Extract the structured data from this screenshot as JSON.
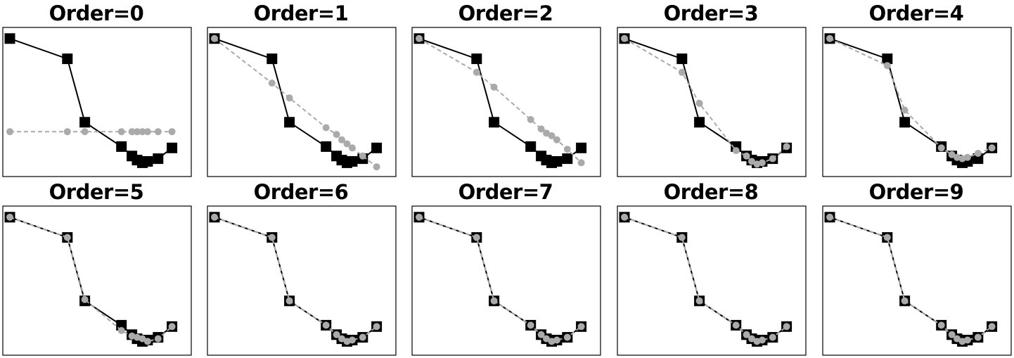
{
  "chart_data": {
    "type": "line",
    "layout": "2x5 grid of polynomial fits",
    "grid": false,
    "axes_ticks": "none",
    "xlim": [
      0,
      1
    ],
    "ylim": [
      0,
      1
    ],
    "x": [
      0.0,
      0.33,
      0.43,
      0.64,
      0.7,
      0.73,
      0.76,
      0.79,
      0.85,
      0.93
    ],
    "data_series": {
      "name": "",
      "style": "black squares, solid black line",
      "y": [
        0.97,
        0.82,
        0.35,
        0.17,
        0.1,
        0.07,
        0.05,
        0.06,
        0.08,
        0.16
      ]
    },
    "panels": [
      {
        "title": "Order=0",
        "fit": [
          0.28,
          0.28,
          0.28,
          0.28,
          0.28,
          0.28,
          0.28,
          0.28,
          0.28,
          0.28
        ]
      },
      {
        "title": "Order=1",
        "fit": [
          0.97,
          0.64,
          0.53,
          0.31,
          0.26,
          0.22,
          0.19,
          0.16,
          0.1,
          0.02
        ]
      },
      {
        "title": "Order=2",
        "fit": [
          0.97,
          0.72,
          0.61,
          0.37,
          0.3,
          0.27,
          0.25,
          0.22,
          0.15,
          0.05
        ]
      },
      {
        "title": "Order=3",
        "fit": [
          0.97,
          0.72,
          0.49,
          0.14,
          0.1,
          0.06,
          0.04,
          0.05,
          0.08,
          0.17
        ]
      },
      {
        "title": "Order=4",
        "fit": [
          0.97,
          0.77,
          0.44,
          0.16,
          0.11,
          0.09,
          0.08,
          0.09,
          0.12,
          0.16
        ]
      },
      {
        "title": "Order=5",
        "fit": [
          0.97,
          0.82,
          0.36,
          0.13,
          0.09,
          0.08,
          0.07,
          0.05,
          0.07,
          0.16
        ]
      },
      {
        "title": "Order=6",
        "fit": [
          0.97,
          0.82,
          0.35,
          0.17,
          0.1,
          0.07,
          0.05,
          0.06,
          0.08,
          0.16
        ]
      },
      {
        "title": "Order=7",
        "fit": [
          0.97,
          0.82,
          0.35,
          0.17,
          0.1,
          0.07,
          0.05,
          0.06,
          0.08,
          0.16
        ]
      },
      {
        "title": "Order=8",
        "fit": [
          0.97,
          0.82,
          0.35,
          0.17,
          0.1,
          0.07,
          0.05,
          0.06,
          0.08,
          0.16
        ]
      },
      {
        "title": "Order=9",
        "fit": [
          0.97,
          0.82,
          0.35,
          0.17,
          0.1,
          0.07,
          0.05,
          0.06,
          0.08,
          0.16
        ]
      }
    ]
  },
  "colors": {
    "data": "#000000",
    "fit": "#aaaaaa",
    "frame": "#000000",
    "background": "#ffffff"
  }
}
